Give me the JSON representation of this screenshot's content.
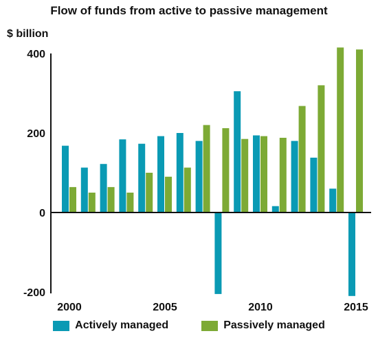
{
  "chart_data": {
    "type": "bar",
    "title": "Flow of funds from active to passive management",
    "ylabel": "$ billion",
    "xlabel": "",
    "x_tick_labels": [
      "2000",
      "2005",
      "2010",
      "2015"
    ],
    "y_tick_labels": [
      "400",
      "200",
      "0",
      "-200"
    ],
    "y_ticks": [
      400,
      200,
      0,
      -200
    ],
    "ylim": [
      -205,
      420
    ],
    "grid": false,
    "legend_position": "bottom",
    "categories": [
      2000,
      2001,
      2002,
      2003,
      2004,
      2005,
      2006,
      2007,
      2008,
      2009,
      2010,
      2011,
      2012,
      2013,
      2014,
      2015
    ],
    "series": [
      {
        "name": "Actively managed",
        "color": "#0a9ab4",
        "values": [
          168,
          113,
          122,
          184,
          173,
          192,
          200,
          180,
          -205,
          305,
          194,
          16,
          180,
          138,
          60,
          -210
        ]
      },
      {
        "name": "Passively managed",
        "color": "#7daa35",
        "values": [
          64,
          50,
          64,
          50,
          100,
          90,
          113,
          220,
          212,
          185,
          192,
          188,
          268,
          320,
          415,
          410
        ]
      }
    ]
  }
}
